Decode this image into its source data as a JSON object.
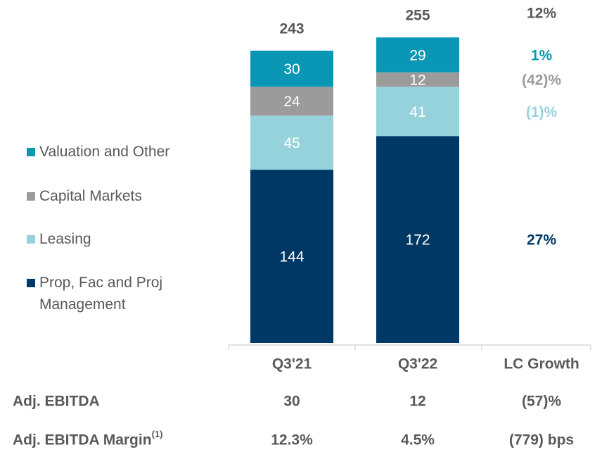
{
  "chart_data": {
    "type": "bar",
    "stacked": true,
    "categories": [
      "Q3'21",
      "Q3'22"
    ],
    "series": [
      {
        "name": "Prop, Fac and Proj Management",
        "color": "#003865",
        "values": [
          144,
          172
        ]
      },
      {
        "name": "Leasing",
        "color": "#96d2dc",
        "values": [
          45,
          41
        ]
      },
      {
        "name": "Capital Markets",
        "color": "#9b9b9b",
        "values": [
          24,
          12
        ]
      },
      {
        "name": "Valuation and Other",
        "color": "#0a97b5",
        "values": [
          30,
          29
        ]
      }
    ],
    "totals": [
      243,
      255
    ],
    "growth": {
      "title": "LC Growth",
      "total": 12,
      "total_label": "12%",
      "values": [
        27,
        -1,
        -42,
        1
      ],
      "value_labels": [
        "27%",
        "(1)%",
        "(42)%",
        "1%"
      ],
      "colors": [
        "#003865",
        "#96d2dc",
        "#9b9b9b",
        "#0a97b5"
      ]
    },
    "table": {
      "rows": [
        [
          "Adj. EBITDA",
          "30",
          "12",
          "(57)%"
        ],
        [
          "Adj. EBITDA Margin",
          "12.3%",
          "4.5%",
          "(779) bps"
        ]
      ],
      "footnote": "(1)"
    }
  }
}
